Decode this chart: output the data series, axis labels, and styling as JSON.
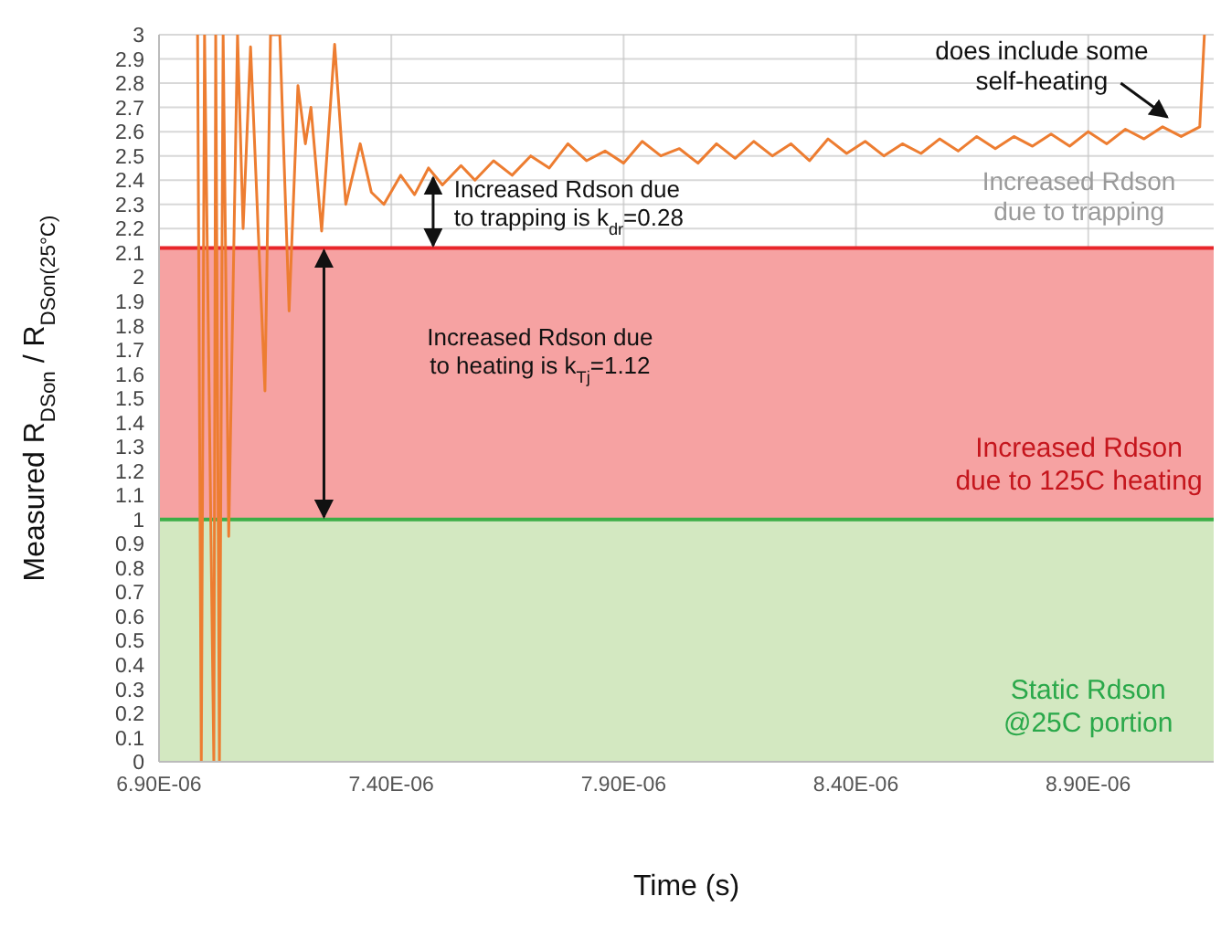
{
  "chart_data": {
    "type": "line",
    "xlabel": "Time (s)",
    "ylabel": "Measured R$_{DSon}$ / R$_{DSon(25°C)}$",
    "x": [
      6.983e-06,
      6.991e-06,
      6.998e-06,
      7.018e-06,
      7.022e-06,
      7.03e-06,
      7.038e-06,
      7.05e-06,
      7.069e-06,
      7.081e-06,
      7.097e-06,
      7.128e-06,
      7.14e-06,
      7.152e-06,
      7.16e-06,
      7.18e-06,
      7.199e-06,
      7.215e-06,
      7.227e-06,
      7.25e-06,
      7.278e-06,
      7.302e-06,
      7.333e-06,
      7.357e-06,
      7.384e-06,
      7.42e-06,
      7.45e-06,
      7.48e-06,
      7.51e-06,
      7.55e-06,
      7.58e-06,
      7.62e-06,
      7.66e-06,
      7.7e-06,
      7.74e-06,
      7.78e-06,
      7.82e-06,
      7.86e-06,
      7.9e-06,
      7.94e-06,
      7.98e-06,
      8.02e-06,
      8.06e-06,
      8.1e-06,
      8.14e-06,
      8.18e-06,
      8.22e-06,
      8.26e-06,
      8.3e-06,
      8.34e-06,
      8.38e-06,
      8.42e-06,
      8.46e-06,
      8.5e-06,
      8.54e-06,
      8.58e-06,
      8.62e-06,
      8.66e-06,
      8.7e-06,
      8.74e-06,
      8.78e-06,
      8.82e-06,
      8.86e-06,
      8.9e-06,
      8.94e-06,
      8.98e-06,
      9.02e-06,
      9.06e-06,
      9.1e-06,
      9.14e-06,
      9.15e-06
    ],
    "series": [
      {
        "color": "#ed7d31",
        "values": [
          3,
          0,
          3,
          0,
          3,
          0,
          3,
          0.93,
          3,
          2.2,
          2.95,
          1.53,
          3,
          3,
          3,
          1.86,
          2.79,
          2.55,
          2.7,
          2.19,
          2.96,
          2.3,
          2.55,
          2.35,
          2.3,
          2.42,
          2.34,
          2.45,
          2.38,
          2.46,
          2.4,
          2.48,
          2.42,
          2.5,
          2.45,
          2.55,
          2.48,
          2.52,
          2.47,
          2.56,
          2.5,
          2.53,
          2.47,
          2.55,
          2.49,
          2.56,
          2.5,
          2.55,
          2.48,
          2.57,
          2.51,
          2.56,
          2.5,
          2.55,
          2.51,
          2.57,
          2.52,
          2.58,
          2.53,
          2.58,
          2.54,
          2.59,
          2.54,
          2.6,
          2.55,
          2.61,
          2.57,
          2.62,
          2.58,
          2.62,
          3
        ]
      }
    ],
    "xlim": [
      6.9e-06,
      9.17e-06
    ],
    "xticks": [
      {
        "value": 6.9e-06,
        "label": "6.90E-06"
      },
      {
        "value": 7.4e-06,
        "label": "7.40E-06"
      },
      {
        "value": 7.9e-06,
        "label": "7.90E-06"
      },
      {
        "value": 8.4e-06,
        "label": "8.40E-06"
      },
      {
        "value": 8.9e-06,
        "label": "8.90E-06"
      }
    ],
    "ylim": [
      0,
      3
    ],
    "yticks": [
      0,
      0.1,
      0.2,
      0.3,
      0.4,
      0.5,
      0.6,
      0.7,
      0.8,
      0.9,
      1,
      1.1,
      1.2,
      1.3,
      1.4,
      1.5,
      1.6,
      1.7,
      1.8,
      1.9,
      2,
      2.1,
      2.2,
      2.3,
      2.4,
      2.5,
      2.6,
      2.7,
      2.8,
      2.9,
      3
    ],
    "grid": true,
    "marker": "none",
    "line_style": "solid",
    "bands": [
      {
        "axis": "y",
        "from": 0,
        "to": 1,
        "color": "#d3e8c1",
        "label": "Static Rdson\n@25C portion"
      },
      {
        "axis": "y",
        "from": 1,
        "to": 2.12,
        "color": "#f6a2a2",
        "label": "Increased Rdson\ndue to 125C heating"
      }
    ],
    "ref_lines": [
      {
        "axis": "y",
        "value": 2.12,
        "color": "#e8262b"
      },
      {
        "axis": "y",
        "value": 1,
        "color": "#3cae47"
      }
    ],
    "annotations": [
      "Increased Rdson due\nto trapping is k$_{dr}$=0.28",
      "Increased Rdson due\nto heating is k$_{Tj}$=1.12",
      "does include some\nself-heating",
      "Increased Rdson\ndue to trapping"
    ]
  }
}
